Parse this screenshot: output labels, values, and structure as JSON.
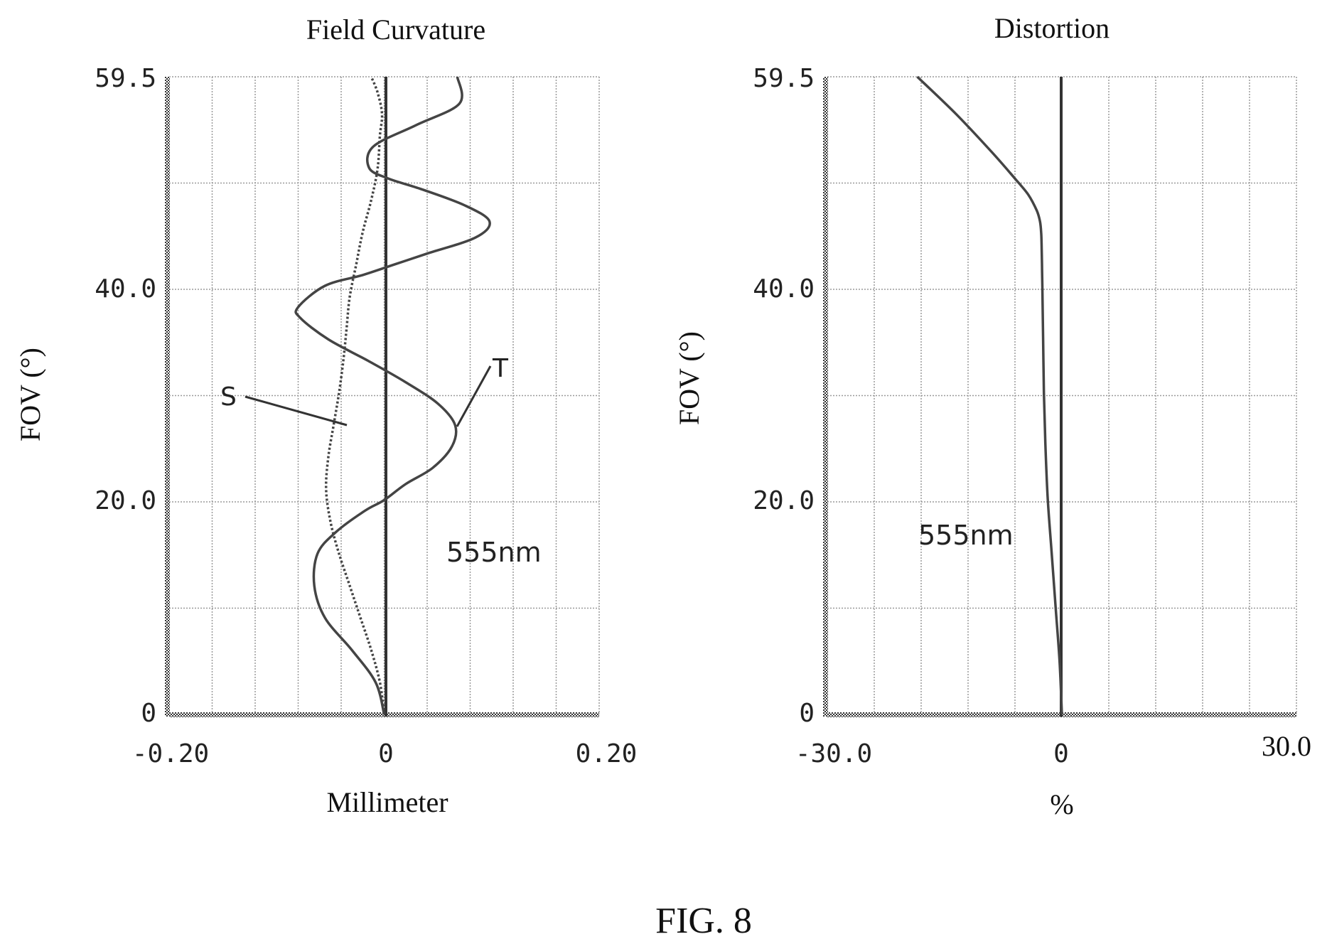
{
  "figure_label": "FIG. 8",
  "chart_data": [
    {
      "id": "field",
      "type": "line",
      "title": "Field Curvature",
      "xlabel": "Millimeter",
      "ylabel": "FOV (°)",
      "xlim": [
        -0.2,
        0.2
      ],
      "ylim": [
        0,
        59.5
      ],
      "x_tick_labels": [
        "-0.20",
        "0",
        "0.20"
      ],
      "y_tick_labels": [
        "0",
        "20.0",
        "40.0",
        "59.5"
      ],
      "wavelength_label": "555nm",
      "grid": true,
      "series": [
        {
          "name": "S",
          "dashed": true,
          "x": [
            0,
            -0.004,
            -0.012,
            -0.022,
            -0.032,
            -0.042,
            -0.05,
            -0.054,
            -0.052,
            -0.047,
            -0.042,
            -0.038,
            -0.035,
            -0.032,
            -0.026,
            -0.02,
            -0.012,
            -0.006,
            -0.004,
            -0.002,
            -0.006,
            -0.012
          ],
          "y": [
            0,
            3,
            6,
            9,
            12,
            15,
            18,
            21,
            24,
            27,
            30,
            33,
            36,
            39,
            42,
            45,
            48,
            51,
            54,
            56,
            58,
            59.5
          ]
        },
        {
          "name": "T",
          "dashed": false,
          "x": [
            0,
            -0.008,
            -0.03,
            -0.055,
            -0.065,
            -0.062,
            -0.045,
            -0.018,
            0,
            0.02,
            0.045,
            0.063,
            0.066,
            0.05,
            0.02,
            -0.015,
            -0.052,
            -0.078,
            -0.08,
            -0.055,
            -0.02,
            0.01,
            0.04,
            0.085,
            0.098,
            0.075,
            0.035,
            0.004,
            -0.014,
            -0.01,
            0.03,
            0.07,
            0.068
          ],
          "y": [
            0,
            3,
            6,
            9,
            12,
            15,
            17,
            19,
            20,
            21.5,
            23,
            25,
            27,
            29,
            31,
            33,
            35,
            37,
            38,
            40,
            41,
            42,
            43,
            44.5,
            46,
            47.5,
            49,
            50,
            51,
            53,
            55,
            57,
            59.5
          ]
        }
      ],
      "annotations": [
        {
          "text": "S",
          "series": "S"
        },
        {
          "text": "T",
          "series": "T"
        }
      ]
    },
    {
      "id": "dist",
      "type": "line",
      "title": "Distortion",
      "xlabel": "%",
      "ylabel": "FOV (°)",
      "xlim": [
        -30,
        30
      ],
      "ylim": [
        0,
        59.5
      ],
      "x_tick_labels": [
        "-30.0",
        "0",
        "30.0"
      ],
      "y_tick_labels": [
        "0",
        "20.0",
        "40.0",
        "59.5"
      ],
      "wavelength_label": "555nm",
      "grid": true,
      "series": [
        {
          "dashed": false,
          "x": [
            0,
            -0.3,
            -0.8,
            -1.3,
            -1.8,
            -2.1,
            -2.3,
            -2.4,
            -2.5,
            -2.55,
            -2.6,
            -2.65,
            -2.8,
            -3.2,
            -4.3,
            -6.0,
            -9.0,
            -13.5,
            -18.5
          ],
          "y": [
            0,
            5,
            10,
            15,
            20,
            25,
            30,
            35,
            40,
            42,
            44,
            45,
            46,
            47,
            48.5,
            50,
            52.5,
            56,
            59.5
          ]
        }
      ]
    }
  ]
}
